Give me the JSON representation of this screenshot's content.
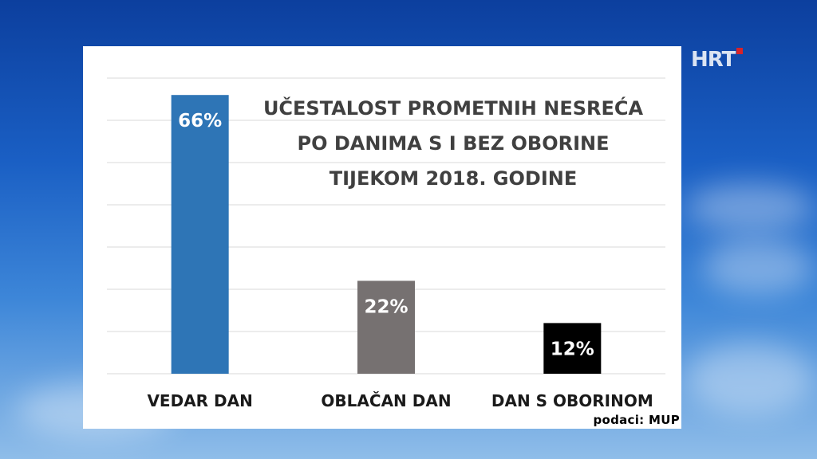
{
  "branding": {
    "logo_text": "HRT"
  },
  "chart_data": {
    "type": "bar",
    "title_lines": [
      "UČESTALOST PROMETNIH NESREĆA",
      "PO DANIMA S I BEZ OBORINE",
      "TIJEKOM 2018. GODINE"
    ],
    "categories": [
      "VEDAR DAN",
      "OBLAČAN DAN",
      "DAN S OBORINOM"
    ],
    "values": [
      66,
      22,
      12
    ],
    "value_labels": [
      "66%",
      "22%",
      "12%"
    ],
    "bar_colors": [
      "#2e75b6",
      "#767171",
      "#000000"
    ],
    "ylim": [
      0,
      70
    ],
    "grid": true,
    "xlabel": "",
    "ylabel": ""
  },
  "source": "podaci: MUP"
}
